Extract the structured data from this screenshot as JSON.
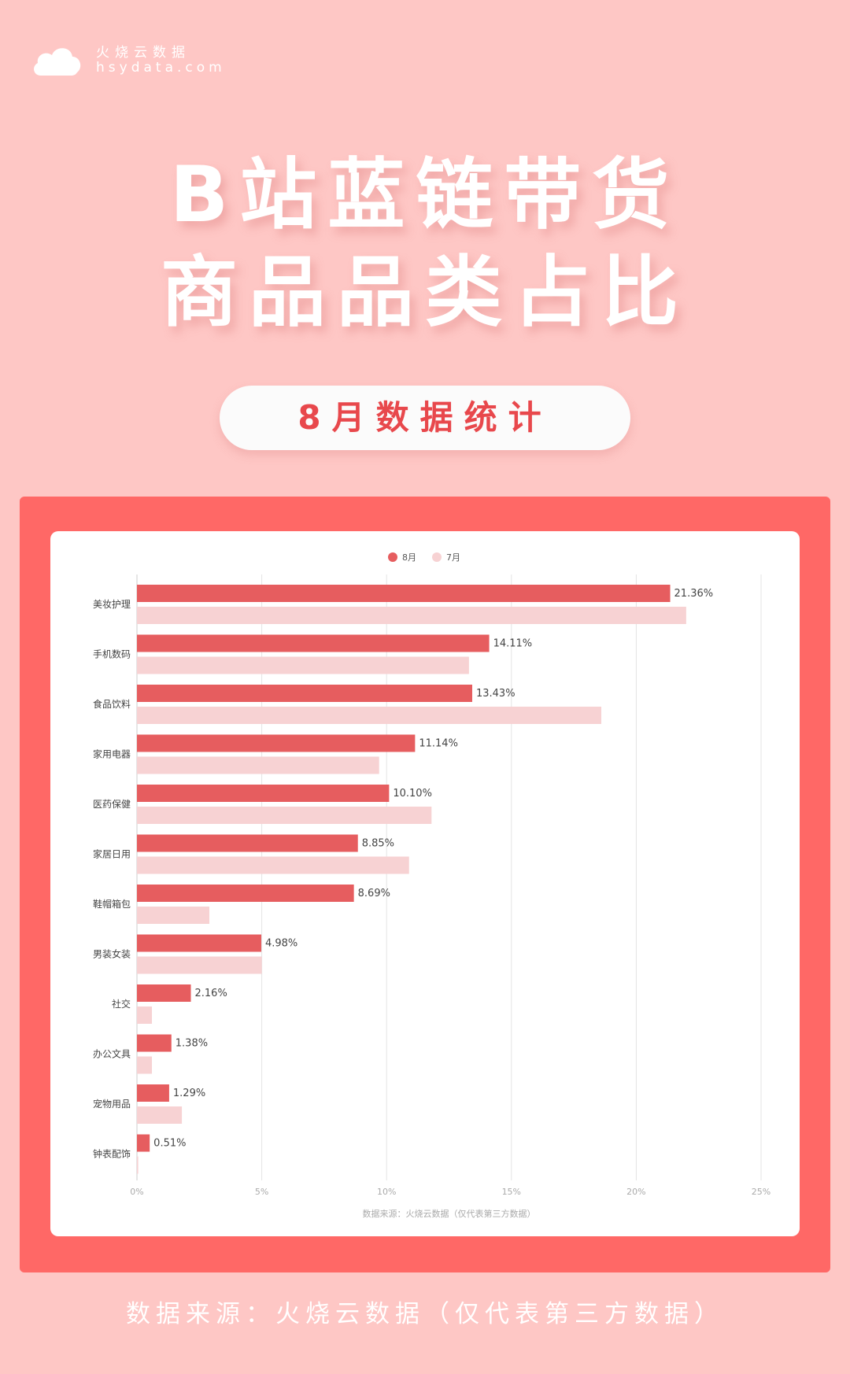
{
  "brand": {
    "name": "火烧云数据",
    "url": "hsydata.com",
    "logo_icon": "cloud-icon"
  },
  "title": {
    "line1": "B站蓝链带货",
    "line2": "商品品类占比"
  },
  "badge": "8月数据统计",
  "footer": "数据来源：火烧云数据（仅代表第三方数据）",
  "colors": {
    "background": "#fec7c5",
    "frame": "#ff6866",
    "series_aug": "#e65d5f",
    "series_jul": "#f7d2d3",
    "title": "#ffffff",
    "badge_text": "#e8484c"
  },
  "chart_data": {
    "type": "bar",
    "orientation": "horizontal",
    "categories": [
      "美妆护理",
      "手机数码",
      "食品饮料",
      "家用电器",
      "医药保健",
      "家居日用",
      "鞋帽箱包",
      "男装女装",
      "社交",
      "办公文具",
      "宠物用品",
      "钟表配饰"
    ],
    "series": [
      {
        "name": "8月",
        "values": [
          21.36,
          14.11,
          13.43,
          11.14,
          10.1,
          8.85,
          8.69,
          4.98,
          2.16,
          1.38,
          1.29,
          0.51
        ],
        "labels": [
          "21.36%",
          "14.11%",
          "13.43%",
          "11.14%",
          "10.10%",
          "8.85%",
          "8.69%",
          "4.98%",
          "2.16%",
          "1.38%",
          "1.29%",
          "0.51%"
        ]
      },
      {
        "name": "7月",
        "values": [
          22.0,
          13.3,
          18.6,
          9.7,
          11.8,
          10.9,
          2.9,
          5.0,
          0.6,
          0.6,
          1.8,
          0.05
        ]
      }
    ],
    "xlim": [
      0,
      25
    ],
    "xticks": [
      "0%",
      "5%",
      "10%",
      "15%",
      "20%",
      "25%"
    ],
    "grid": true,
    "legend_position": "top-center",
    "source_note": "数据来源：火烧云数据（仅代表第三方数据）"
  }
}
